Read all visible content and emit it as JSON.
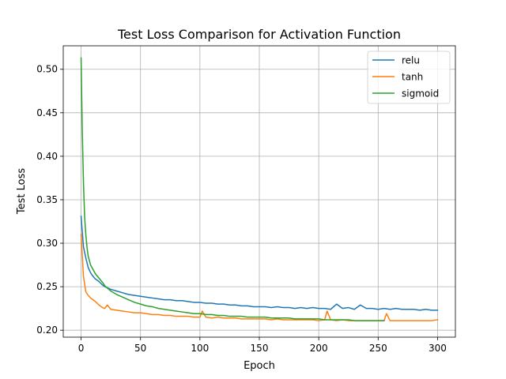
{
  "chart_data": {
    "type": "line",
    "title": "Test Loss Comparison for Activation Function",
    "xlabel": "Epoch",
    "ylabel": "Test Loss",
    "xlim": [
      -15,
      315
    ],
    "ylim": [
      0.192,
      0.527
    ],
    "xticks": [
      0,
      50,
      100,
      150,
      200,
      250,
      300
    ],
    "xtick_labels": [
      "0",
      "50",
      "100",
      "150",
      "200",
      "250",
      "300"
    ],
    "yticks": [
      0.2,
      0.25,
      0.3,
      0.35,
      0.4,
      0.45,
      0.5
    ],
    "ytick_labels": [
      "0.20",
      "0.25",
      "0.30",
      "0.35",
      "0.40",
      "0.45",
      "0.50"
    ],
    "grid": true,
    "legend_position": "top-right",
    "series": [
      {
        "name": "relu",
        "color": "#1f77b4",
        "x": [
          0,
          2,
          4,
          6,
          8,
          10,
          12,
          15,
          18,
          20,
          25,
          30,
          35,
          40,
          45,
          50,
          55,
          60,
          65,
          70,
          75,
          80,
          85,
          90,
          95,
          100,
          105,
          110,
          115,
          120,
          125,
          130,
          135,
          140,
          145,
          150,
          155,
          160,
          165,
          170,
          175,
          180,
          185,
          190,
          195,
          200,
          205,
          210,
          215,
          220,
          225,
          230,
          235,
          240,
          245,
          250,
          255,
          260,
          265,
          270,
          275,
          280,
          285,
          290,
          295,
          300
        ],
        "y": [
          0.331,
          0.296,
          0.283,
          0.272,
          0.266,
          0.262,
          0.259,
          0.256,
          0.252,
          0.25,
          0.247,
          0.245,
          0.243,
          0.241,
          0.24,
          0.239,
          0.238,
          0.237,
          0.236,
          0.235,
          0.235,
          0.234,
          0.234,
          0.233,
          0.232,
          0.232,
          0.231,
          0.231,
          0.23,
          0.23,
          0.229,
          0.229,
          0.228,
          0.228,
          0.227,
          0.227,
          0.227,
          0.226,
          0.227,
          0.226,
          0.226,
          0.225,
          0.226,
          0.225,
          0.226,
          0.225,
          0.225,
          0.224,
          0.23,
          0.225,
          0.226,
          0.224,
          0.229,
          0.225,
          0.225,
          0.224,
          0.225,
          0.224,
          0.225,
          0.224,
          0.224,
          0.224,
          0.223,
          0.224,
          0.223,
          0.223
        ]
      },
      {
        "name": "tanh",
        "color": "#ff7f0e",
        "x": [
          0,
          2,
          4,
          6,
          8,
          10,
          12,
          15,
          18,
          20,
          22,
          25,
          30,
          35,
          40,
          45,
          50,
          55,
          60,
          65,
          70,
          75,
          80,
          85,
          90,
          95,
          100,
          102,
          105,
          110,
          115,
          120,
          125,
          130,
          135,
          140,
          145,
          150,
          155,
          160,
          165,
          170,
          175,
          180,
          185,
          190,
          195,
          200,
          205,
          207,
          210,
          215,
          220,
          225,
          230,
          235,
          240,
          245,
          250,
          255,
          257,
          260,
          265,
          270,
          275,
          280,
          285,
          290,
          295,
          300
        ],
        "y": [
          0.31,
          0.262,
          0.244,
          0.24,
          0.237,
          0.235,
          0.233,
          0.229,
          0.226,
          0.225,
          0.229,
          0.224,
          0.223,
          0.222,
          0.221,
          0.22,
          0.22,
          0.219,
          0.218,
          0.218,
          0.217,
          0.217,
          0.216,
          0.216,
          0.216,
          0.215,
          0.215,
          0.222,
          0.215,
          0.214,
          0.215,
          0.214,
          0.214,
          0.214,
          0.213,
          0.213,
          0.213,
          0.213,
          0.213,
          0.212,
          0.213,
          0.212,
          0.212,
          0.212,
          0.212,
          0.212,
          0.212,
          0.211,
          0.212,
          0.222,
          0.212,
          0.211,
          0.212,
          0.211,
          0.211,
          0.211,
          0.211,
          0.211,
          0.211,
          0.211,
          0.219,
          0.211,
          0.211,
          0.211,
          0.211,
          0.211,
          0.211,
          0.211,
          0.211,
          0.212
        ]
      },
      {
        "name": "sigmoid",
        "color": "#2ca02c",
        "x": [
          0,
          1,
          2,
          3,
          4,
          5,
          6,
          8,
          10,
          12,
          15,
          18,
          20,
          25,
          30,
          35,
          40,
          45,
          50,
          55,
          60,
          65,
          70,
          75,
          80,
          85,
          90,
          95,
          100,
          105,
          110,
          115,
          120,
          125,
          130,
          135,
          140,
          145,
          150,
          155,
          160,
          165,
          170,
          175,
          180,
          185,
          190,
          195,
          200,
          205,
          210,
          215,
          220,
          225,
          230,
          235,
          240,
          245,
          250,
          255
        ],
        "y": [
          0.513,
          0.43,
          0.37,
          0.33,
          0.31,
          0.295,
          0.285,
          0.275,
          0.27,
          0.265,
          0.26,
          0.255,
          0.251,
          0.245,
          0.241,
          0.238,
          0.235,
          0.232,
          0.23,
          0.228,
          0.227,
          0.225,
          0.224,
          0.223,
          0.222,
          0.221,
          0.22,
          0.219,
          0.219,
          0.218,
          0.218,
          0.217,
          0.217,
          0.216,
          0.216,
          0.216,
          0.215,
          0.215,
          0.215,
          0.215,
          0.214,
          0.214,
          0.214,
          0.214,
          0.213,
          0.213,
          0.213,
          0.213,
          0.213,
          0.212,
          0.212,
          0.212,
          0.212,
          0.212,
          0.211,
          0.211,
          0.211,
          0.211,
          0.211,
          0.211
        ]
      }
    ]
  }
}
